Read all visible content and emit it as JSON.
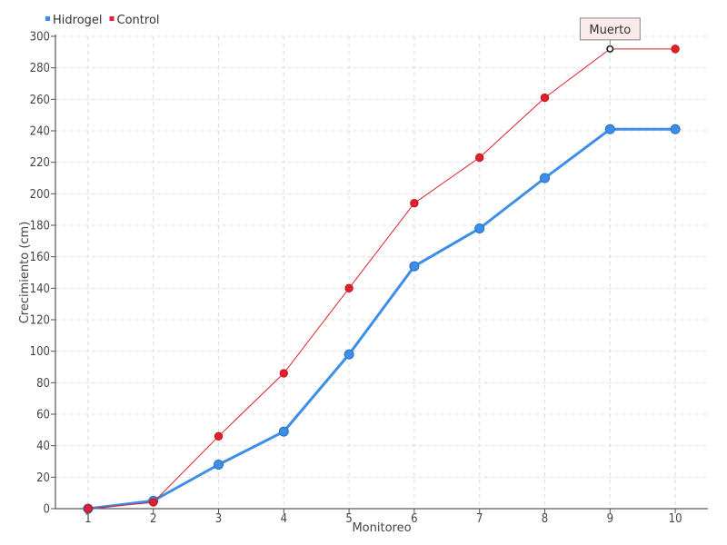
{
  "chart_data": {
    "type": "line",
    "title": "",
    "xlabel": "Monitoreo",
    "ylabel": "Crecimiento (cm)",
    "x": [
      1,
      2,
      3,
      4,
      5,
      6,
      7,
      8,
      9,
      10
    ],
    "xlim": [
      0.5,
      10.5
    ],
    "ylim": [
      0,
      300
    ],
    "yticks": [
      0,
      20,
      40,
      60,
      80,
      100,
      120,
      140,
      160,
      180,
      200,
      220,
      240,
      260,
      280,
      300
    ],
    "grid": true,
    "legend_position": "top-left",
    "series": [
      {
        "name": "Hidrogel",
        "color": "#3d8ee8",
        "values": [
          0,
          5,
          28,
          49,
          98,
          154,
          178,
          210,
          241,
          241
        ]
      },
      {
        "name": "Control",
        "color": "#e0202a",
        "values": [
          0,
          4,
          46,
          86,
          140,
          194,
          223,
          261,
          292,
          292
        ]
      }
    ],
    "annotation": {
      "text": "Muerto",
      "series": "Control",
      "x": 9,
      "y": 292
    }
  }
}
